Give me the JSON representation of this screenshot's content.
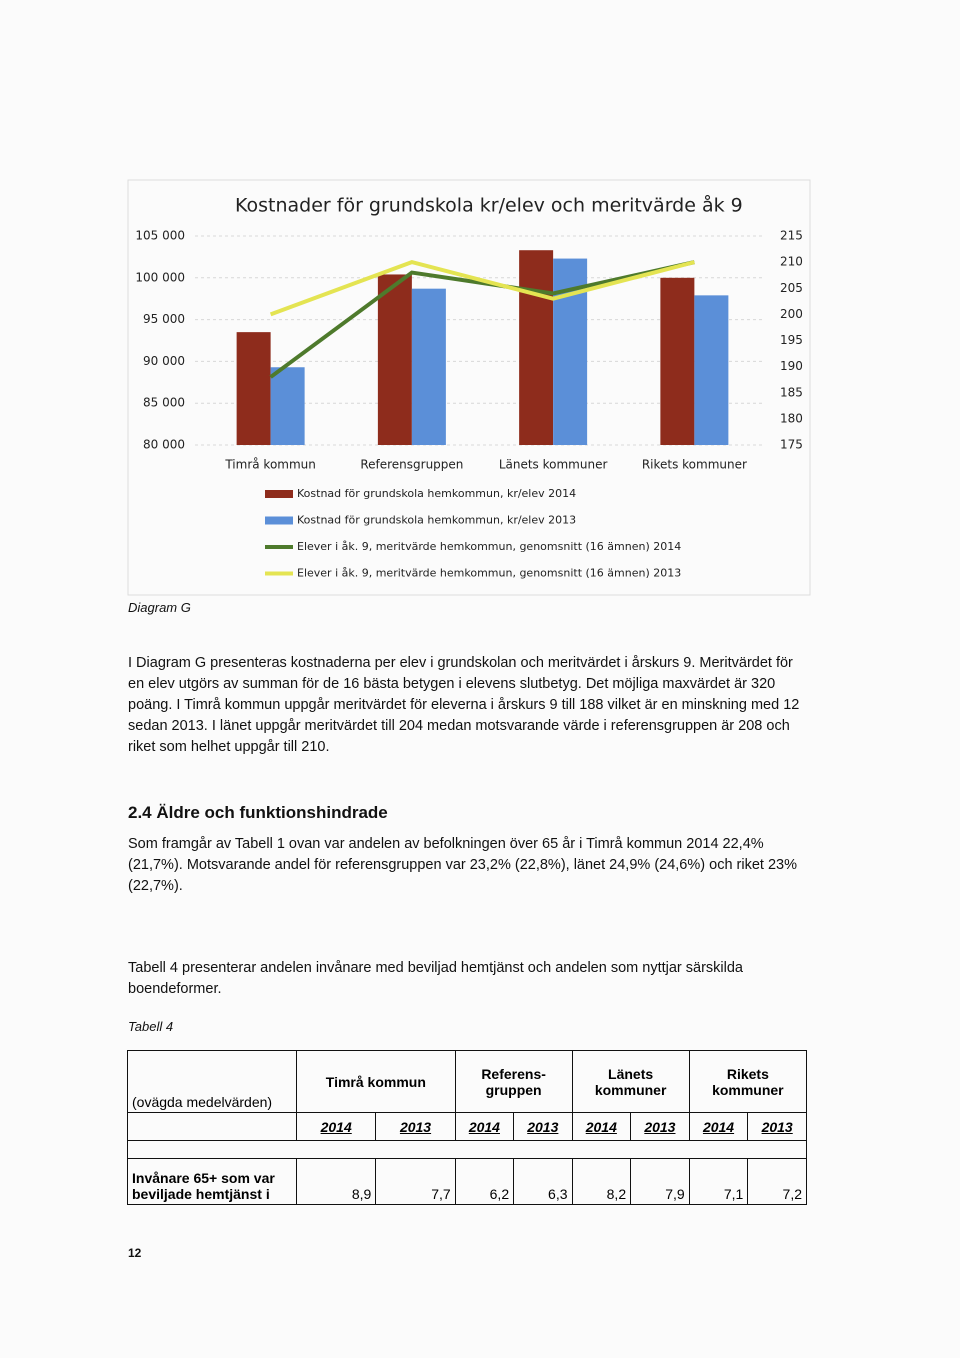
{
  "chart_data": {
    "type": "bar",
    "title": "Kostnader för grundskola kr/elev och meritvärde åk 9",
    "categories": [
      "Timrå kommun",
      "Referensgruppen",
      "Länets kommuner",
      "Rikets kommuner"
    ],
    "series": [
      {
        "name": "Kostnad för grundskola hemkommun, kr/elev 2014",
        "color": "#8e2c1c",
        "values": [
          93500,
          100400,
          103300,
          100000
        ]
      },
      {
        "name": "Kostnad för grundskola hemkommun, kr/elev 2013",
        "color": "#5b8fd8",
        "values": [
          89300,
          98700,
          102300,
          97900
        ]
      },
      {
        "name": "Elever i åk. 9, meritvärde hemkommun, genomsnitt (16 ämnen) 2014",
        "color": "#4e7a2c",
        "axis": "y2",
        "values": [
          188,
          208,
          204,
          210
        ]
      },
      {
        "name": "Elever i åk. 9, meritvärde hemkommun, genomsnitt (16 ämnen) 2013",
        "color": "#e4e452",
        "axis": "y2",
        "values": [
          200,
          210,
          203,
          210
        ]
      }
    ],
    "ylim": [
      80000,
      105000
    ],
    "yticks": [
      {
        "value": 80000,
        "label": "80 000"
      },
      {
        "value": 85000,
        "label": "85 000"
      },
      {
        "value": 90000,
        "label": "90 000"
      },
      {
        "value": 95000,
        "label": "95 000"
      },
      {
        "value": 100000,
        "label": "100 000"
      },
      {
        "value": 105000,
        "label": "105 000"
      }
    ],
    "y2lim": [
      175,
      215
    ],
    "y2ticks": [
      175,
      180,
      185,
      190,
      195,
      200,
      205,
      210,
      215
    ],
    "grid": true,
    "legend": "bottom"
  },
  "caption": "Diagram G",
  "paragraph_1": "I Diagram G presenteras kostnaderna per elev i grundskolan och meritvärdet i årskurs 9. Meritvärdet för en elev utgörs av summan för de 16 bästa betygen i elevens slutbetyg. Det möjliga maxvärdet är 320 poäng. I Timrå kommun uppgår meritvärdet för eleverna i årskurs 9 till 188 vilket är en minskning med 12 sedan 2013. I länet uppgår meritvärdet till 204 medan motsvarande värde i referensgruppen är 208 och riket som helhet uppgår till 210.",
  "heading": "2.4 Äldre och funktionshindrade",
  "paragraph_2": "Som framgår av Tabell 1 ovan var andelen av befolkningen över 65 år i Timrå kommun 2014 22,4% (21,7%). Motsvarande andel för referensgruppen var 23,2% (22,8%), länet 24,9% (24,6%) och riket 23% (22,7%).",
  "paragraph_3": "Tabell 4 presenterar andelen invånare med beviljad hemtjänst och andelen som nyttjar särskilda boendeformer.",
  "table_caption": "Tabell 4",
  "table": {
    "corner": "(ovägda medelvärden)",
    "groups": [
      "Timrå kommun",
      "Referens-\ngruppen",
      "Länets\nkommuner",
      "Rikets\nkommuner"
    ],
    "years": [
      "2014",
      "2013",
      "2014",
      "2013",
      "2014",
      "2013",
      "2014",
      "2013"
    ],
    "rows": [
      [
        "Invånare 65+ som var beviljade hemtjänst i",
        "8,9",
        "7,7",
        "6,2",
        "6,3",
        "8,2",
        "7,9",
        "7,1",
        "7,2"
      ]
    ]
  },
  "page_number": "12"
}
